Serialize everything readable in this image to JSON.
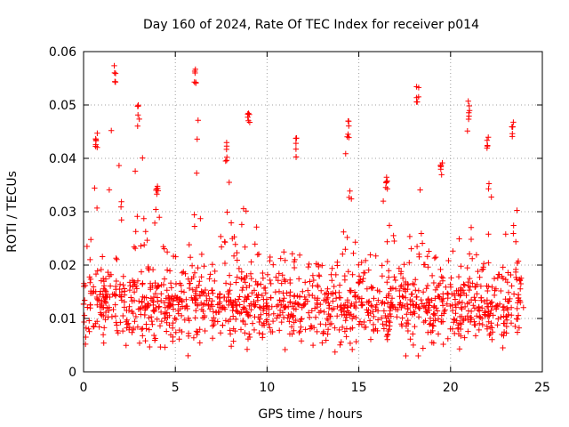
{
  "chart_data": {
    "type": "scatter",
    "title": "Day 160 of 2024, Rate Of TEC Index for receiver p014",
    "xlabel": "GPS time / hours",
    "ylabel": "ROTI / TECUs",
    "xlim": [
      0,
      25
    ],
    "ylim": [
      0,
      0.06
    ],
    "xticks": [
      0,
      5,
      10,
      15,
      20,
      25
    ],
    "xtick_labels": [
      "0",
      "5",
      "10",
      "15",
      "20",
      "25"
    ],
    "yticks": [
      0,
      0.01,
      0.02,
      0.03,
      0.04,
      0.05,
      0.06
    ],
    "ytick_labels": [
      "0",
      "0.01",
      "0.02",
      "0.03",
      "0.04",
      "0.05",
      "0.06"
    ],
    "grid": true,
    "marker": "plus",
    "color": "#ff0000",
    "series": [
      {
        "name": "ROTI",
        "x_range": [
          0,
          24
        ],
        "baseline": 0.012,
        "peaks": [
          {
            "x": 0.7,
            "y": 0.045
          },
          {
            "x": 1.7,
            "y": 0.058
          },
          {
            "x": 3.0,
            "y": 0.05
          },
          {
            "x": 4.0,
            "y": 0.035
          },
          {
            "x": 6.1,
            "y": 0.057
          },
          {
            "x": 7.8,
            "y": 0.043
          },
          {
            "x": 9.0,
            "y": 0.049
          },
          {
            "x": 11.6,
            "y": 0.044
          },
          {
            "x": 14.4,
            "y": 0.047
          },
          {
            "x": 16.5,
            "y": 0.038
          },
          {
            "x": 18.2,
            "y": 0.054
          },
          {
            "x": 19.5,
            "y": 0.04
          },
          {
            "x": 21.0,
            "y": 0.051
          },
          {
            "x": 22.0,
            "y": 0.045
          },
          {
            "x": 23.4,
            "y": 0.047
          }
        ]
      }
    ]
  }
}
